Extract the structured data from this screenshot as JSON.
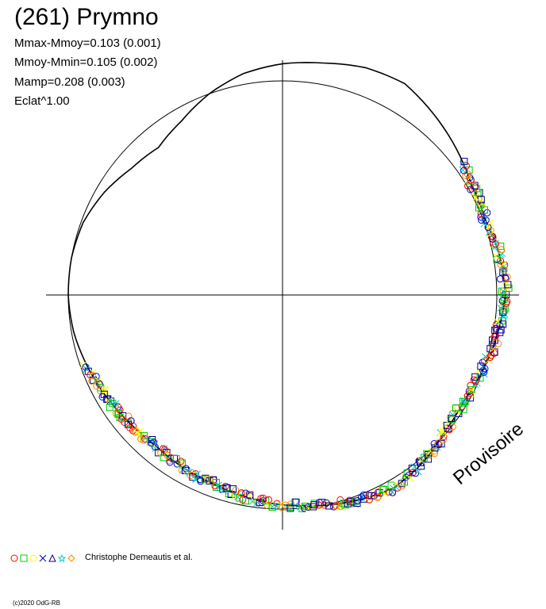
{
  "header": {
    "title": "(261) Prymno",
    "stats": [
      "Mmax-Mmoy=0.103 (0.001)",
      "Mmoy-Mmin=0.105 (0.002)",
      "Mamp=0.208 (0.003)",
      "Eclat^1.00"
    ]
  },
  "watermark": "Provisoire",
  "legend": {
    "markers": [
      {
        "shape": "circle",
        "color": "#ff0000"
      },
      {
        "shape": "square",
        "color": "#00cc00"
      },
      {
        "shape": "circle",
        "color": "#ffff00"
      },
      {
        "shape": "cross",
        "color": "#0000cc"
      },
      {
        "shape": "triangle",
        "color": "#000088"
      },
      {
        "shape": "star",
        "color": "#00cccc"
      },
      {
        "shape": "diamond",
        "color": "#ff8800"
      }
    ],
    "text": "Christophe Demeautis et al."
  },
  "copyright": "(c)2020 OdG-RB",
  "chart_data": {
    "type": "polar-lightcurve",
    "reference_circle": true,
    "axes": {
      "crosshair": true
    },
    "fitted_curve_radius_by_angle_deg": [
      [
        0,
        1.04
      ],
      [
        10,
        1.03
      ],
      [
        20,
        1.01
      ],
      [
        30,
        1.02
      ],
      [
        40,
        1.06
      ],
      [
        50,
        1.1
      ],
      [
        60,
        1.14
      ],
      [
        70,
        1.13
      ],
      [
        80,
        1.1
      ],
      [
        90,
        1.08
      ],
      [
        100,
        1.05
      ],
      [
        110,
        1.0
      ],
      [
        120,
        0.94
      ],
      [
        130,
        0.9
      ],
      [
        140,
        0.92
      ],
      [
        150,
        0.96
      ],
      [
        160,
        0.99
      ],
      [
        170,
        1.0
      ],
      [
        180,
        1.0
      ],
      [
        190,
        0.99
      ],
      [
        200,
        0.97
      ],
      [
        210,
        0.95
      ],
      [
        220,
        0.93
      ],
      [
        230,
        0.92
      ],
      [
        240,
        0.93
      ],
      [
        250,
        0.94
      ],
      [
        260,
        0.96
      ],
      [
        270,
        0.98
      ],
      [
        280,
        1.0
      ],
      [
        290,
        1.02
      ],
      [
        300,
        1.04
      ],
      [
        310,
        1.02
      ],
      [
        320,
        0.99
      ],
      [
        330,
        0.98
      ],
      [
        340,
        1.0
      ],
      [
        350,
        1.02
      ]
    ],
    "data_coverage_deg": [
      [
        -160,
        36
      ]
    ],
    "series_colors": [
      "#ff0000",
      "#00cc00",
      "#ffff00",
      "#0000cc",
      "#000088",
      "#00cccc",
      "#ff8800"
    ]
  }
}
